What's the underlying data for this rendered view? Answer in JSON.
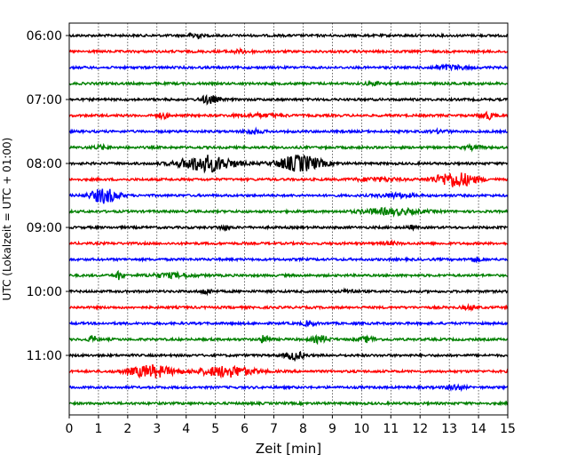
{
  "chart_data": {
    "type": "line",
    "title": "",
    "xlabel": "Zeit  [min]",
    "ylabel": "UTC (Lokalzeit = UTC + 01:00)",
    "xlim": [
      0,
      15
    ],
    "x_ticks": [
      "0",
      "1",
      "2",
      "3",
      "4",
      "5",
      "6",
      "7",
      "8",
      "9",
      "10",
      "11",
      "12",
      "13",
      "14",
      "15"
    ],
    "y_tick_labels": [
      "06:00",
      "07:00",
      "08:00",
      "09:00",
      "10:00",
      "11:00"
    ],
    "trace_interval_minutes": 15,
    "vertical_grid": true,
    "legend": "none",
    "traces": [
      {
        "start": "06:00",
        "color": "#000000",
        "bursts": [
          {
            "t": 4.3,
            "w": 0.35,
            "a": 0.9
          }
        ]
      },
      {
        "start": "06:15",
        "color": "#ff0000",
        "bursts": [
          {
            "t": 5.8,
            "w": 1.0,
            "a": 0.3
          }
        ]
      },
      {
        "start": "06:30",
        "color": "#0000ff",
        "bursts": [
          {
            "t": 13.0,
            "w": 1.2,
            "a": 0.5
          }
        ]
      },
      {
        "start": "06:45",
        "color": "#008000",
        "bursts": [
          {
            "t": 10.5,
            "w": 0.8,
            "a": 0.3
          }
        ]
      },
      {
        "start": "07:00",
        "color": "#000000",
        "bursts": [
          {
            "t": 4.8,
            "w": 0.6,
            "a": 1.0
          }
        ]
      },
      {
        "start": "07:15",
        "color": "#ff0000",
        "bursts": [
          {
            "t": 3.2,
            "w": 0.4,
            "a": 0.6
          },
          {
            "t": 6.5,
            "w": 1.5,
            "a": 0.35
          },
          {
            "t": 14.3,
            "w": 0.5,
            "a": 0.8
          }
        ]
      },
      {
        "start": "07:30",
        "color": "#0000ff",
        "bursts": [
          {
            "t": 6.3,
            "w": 0.6,
            "a": 0.5
          },
          {
            "t": 12.7,
            "w": 0.6,
            "a": 0.3
          }
        ]
      },
      {
        "start": "07:45",
        "color": "#008000",
        "bursts": [
          {
            "t": 1.1,
            "w": 0.6,
            "a": 0.4
          },
          {
            "t": 13.8,
            "w": 0.6,
            "a": 0.4
          }
        ]
      },
      {
        "start": "08:00",
        "color": "#000000",
        "bursts": [
          {
            "t": 4.7,
            "w": 1.8,
            "a": 2.0
          },
          {
            "t": 7.9,
            "w": 1.5,
            "a": 2.0
          }
        ]
      },
      {
        "start": "08:15",
        "color": "#ff0000",
        "bursts": [
          {
            "t": 10.5,
            "w": 1.5,
            "a": 0.4
          },
          {
            "t": 13.2,
            "w": 1.4,
            "a": 1.8
          }
        ]
      },
      {
        "start": "08:30",
        "color": "#0000ff",
        "bursts": [
          {
            "t": 1.2,
            "w": 0.9,
            "a": 1.8
          },
          {
            "t": 11.2,
            "w": 1.2,
            "a": 0.5
          }
        ]
      },
      {
        "start": "08:45",
        "color": "#008000",
        "bursts": [
          {
            "t": 11.0,
            "w": 2.0,
            "a": 0.7
          }
        ]
      },
      {
        "start": "09:00",
        "color": "#000000",
        "bursts": [
          {
            "t": 5.3,
            "w": 0.4,
            "a": 0.5
          },
          {
            "t": 11.7,
            "w": 0.3,
            "a": 0.4
          }
        ]
      },
      {
        "start": "09:15",
        "color": "#ff0000",
        "bursts": [
          {
            "t": 11.0,
            "w": 0.6,
            "a": 0.3
          }
        ]
      },
      {
        "start": "09:30",
        "color": "#0000ff",
        "bursts": [
          {
            "t": 13.9,
            "w": 0.4,
            "a": 0.5
          }
        ]
      },
      {
        "start": "09:45",
        "color": "#008000",
        "bursts": [
          {
            "t": 1.7,
            "w": 0.25,
            "a": 1.0
          },
          {
            "t": 3.5,
            "w": 1.5,
            "a": 0.5
          }
        ]
      },
      {
        "start": "10:00",
        "color": "#000000",
        "bursts": [
          {
            "t": 4.7,
            "w": 0.4,
            "a": 0.6
          },
          {
            "t": 9.6,
            "w": 0.5,
            "a": 0.4
          }
        ]
      },
      {
        "start": "10:15",
        "color": "#ff0000",
        "bursts": [
          {
            "t": 13.7,
            "w": 0.5,
            "a": 0.4
          }
        ]
      },
      {
        "start": "10:30",
        "color": "#0000ff",
        "bursts": [
          {
            "t": 8.2,
            "w": 0.4,
            "a": 0.6
          }
        ]
      },
      {
        "start": "10:45",
        "color": "#008000",
        "bursts": [
          {
            "t": 0.8,
            "w": 0.3,
            "a": 0.8
          },
          {
            "t": 6.7,
            "w": 0.3,
            "a": 1.1
          },
          {
            "t": 8.6,
            "w": 0.6,
            "a": 0.8
          },
          {
            "t": 10.2,
            "w": 0.6,
            "a": 0.6
          }
        ]
      },
      {
        "start": "11:00",
        "color": "#000000",
        "bursts": [
          {
            "t": 7.7,
            "w": 0.6,
            "a": 1.0
          }
        ]
      },
      {
        "start": "11:15",
        "color": "#ff0000",
        "bursts": [
          {
            "t": 2.8,
            "w": 1.5,
            "a": 1.5
          },
          {
            "t": 5.4,
            "w": 1.8,
            "a": 1.3
          }
        ]
      },
      {
        "start": "11:30",
        "color": "#0000ff",
        "bursts": [
          {
            "t": 13.2,
            "w": 0.6,
            "a": 0.6
          }
        ]
      },
      {
        "start": "11:45",
        "color": "#008000",
        "bursts": []
      }
    ]
  }
}
